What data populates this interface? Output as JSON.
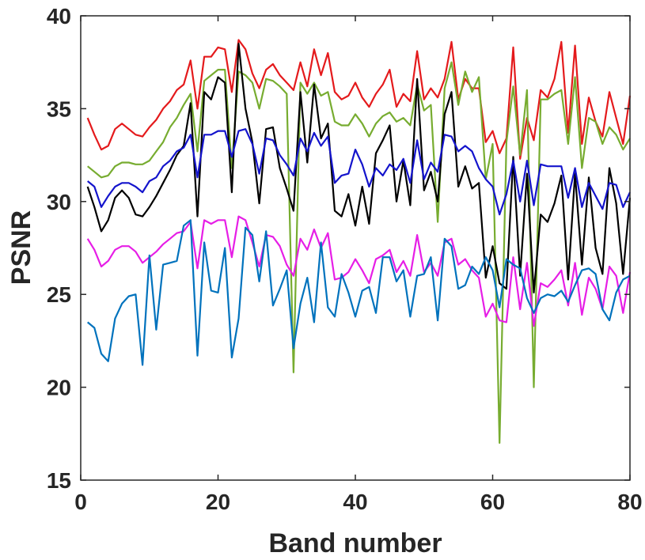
{
  "chart_data": {
    "type": "line",
    "title": "",
    "xlabel": "Band number",
    "ylabel": "PSNR",
    "xlim": [
      0,
      80
    ],
    "ylim": [
      15,
      40
    ],
    "xticks": [
      0,
      20,
      40,
      60,
      80
    ],
    "yticks": [
      15,
      20,
      25,
      30,
      35,
      40
    ],
    "grid": false,
    "x": [
      1,
      2,
      3,
      4,
      5,
      6,
      7,
      8,
      9,
      10,
      11,
      12,
      13,
      14,
      15,
      16,
      17,
      18,
      19,
      20,
      21,
      22,
      23,
      24,
      25,
      26,
      27,
      28,
      29,
      30,
      31,
      32,
      33,
      34,
      35,
      36,
      37,
      38,
      39,
      40,
      41,
      42,
      43,
      44,
      45,
      46,
      47,
      48,
      49,
      50,
      51,
      52,
      53,
      54,
      55,
      56,
      57,
      58,
      59,
      60,
      61,
      62,
      63,
      64,
      65,
      66,
      67,
      68,
      69,
      70,
      71,
      72,
      73,
      74,
      75,
      76,
      77,
      78,
      79,
      80
    ],
    "series": [
      {
        "color": "#e41a1c",
        "values": [
          34.5,
          33.6,
          32.8,
          33.0,
          33.9,
          34.2,
          33.9,
          33.6,
          33.5,
          34.0,
          34.4,
          35.0,
          35.4,
          36.0,
          36.3,
          37.6,
          35.0,
          37.8,
          37.8,
          38.3,
          38.2,
          35.9,
          38.7,
          38.2,
          36.9,
          36.1,
          37.1,
          37.4,
          36.8,
          36.4,
          36.0,
          37.5,
          36.2,
          38.2,
          36.8,
          38.0,
          35.9,
          35.5,
          35.7,
          36.4,
          35.6,
          35.1,
          35.8,
          36.3,
          37.1,
          35.1,
          35.8,
          35.4,
          38.1,
          35.5,
          36.1,
          35.6,
          36.6,
          38.6,
          35.5,
          36.6,
          36.1,
          36.1,
          33.2,
          33.8,
          32.6,
          33.4,
          38.3,
          32.3,
          34.5,
          33.3,
          36.0,
          35.6,
          36.6,
          38.6,
          33.7,
          38.4,
          33.1,
          35.6,
          34.3,
          33.5,
          35.9,
          34.5,
          33.1,
          35.7
        ]
      },
      {
        "color": "#77ac30",
        "values": [
          31.9,
          31.6,
          31.3,
          31.4,
          31.9,
          32.1,
          32.1,
          32.0,
          32.0,
          32.2,
          32.7,
          33.2,
          34.0,
          34.5,
          35.2,
          35.8,
          32.7,
          36.5,
          36.8,
          37.1,
          37.1,
          31.8,
          37.0,
          36.8,
          36.4,
          35.0,
          36.6,
          36.5,
          36.2,
          35.8,
          20.8,
          36.4,
          35.8,
          36.4,
          35.7,
          35.9,
          34.3,
          34.1,
          34.1,
          34.7,
          34.2,
          33.5,
          34.2,
          34.6,
          34.8,
          34.3,
          34.5,
          34.1,
          36.3,
          34.9,
          35.2,
          28.9,
          36.1,
          37.5,
          35.2,
          37.0,
          35.9,
          36.7,
          31.2,
          33.1,
          17.0,
          33.2,
          36.2,
          32.5,
          36.0,
          20.0,
          35.5,
          35.5,
          35.8,
          36.0,
          33.1,
          36.7,
          31.8,
          34.5,
          34.3,
          33.1,
          34.0,
          33.6,
          32.8,
          33.4
        ]
      },
      {
        "color": "#000000",
        "values": [
          30.8,
          29.7,
          28.4,
          29.0,
          30.2,
          30.6,
          30.2,
          29.3,
          29.2,
          29.7,
          30.3,
          31.0,
          31.7,
          32.5,
          33.0,
          35.3,
          29.2,
          35.9,
          35.5,
          36.7,
          36.4,
          30.5,
          38.5,
          35.0,
          33.2,
          29.9,
          33.9,
          34.0,
          31.8,
          30.7,
          29.5,
          35.9,
          32.1,
          36.3,
          33.4,
          34.2,
          29.5,
          29.2,
          30.4,
          28.7,
          30.8,
          28.8,
          32.6,
          33.3,
          34.1,
          30.0,
          32.2,
          29.8,
          36.6,
          30.6,
          31.6,
          30.0,
          34.7,
          35.9,
          30.8,
          31.9,
          30.7,
          31.0,
          25.9,
          27.6,
          25.6,
          25.3,
          32.4,
          26.0,
          31.5,
          25.1,
          29.3,
          28.9,
          29.9,
          31.4,
          25.8,
          31.5,
          26.6,
          31.3,
          27.5,
          26.1,
          31.8,
          29.9,
          26.1,
          30.2
        ]
      },
      {
        "color": "#1414cc",
        "values": [
          31.1,
          30.8,
          29.7,
          30.3,
          30.8,
          31.0,
          31.0,
          30.8,
          30.5,
          31.1,
          31.3,
          31.9,
          32.2,
          32.7,
          32.9,
          33.6,
          31.3,
          33.6,
          33.6,
          33.8,
          33.8,
          32.4,
          33.8,
          33.9,
          33.1,
          31.5,
          33.4,
          33.3,
          32.5,
          32.0,
          31.4,
          33.4,
          32.7,
          33.7,
          33.0,
          33.5,
          31.0,
          31.4,
          31.5,
          32.8,
          32.0,
          30.8,
          31.8,
          31.4,
          32.0,
          31.7,
          32.3,
          31.0,
          33.3,
          31.2,
          32.1,
          31.6,
          33.6,
          33.5,
          32.7,
          33.0,
          32.7,
          31.8,
          31.2,
          30.8,
          29.3,
          30.4,
          32.2,
          30.0,
          32.2,
          29.8,
          32.0,
          31.9,
          31.9,
          31.9,
          30.2,
          31.8,
          29.7,
          31.0,
          30.3,
          29.6,
          31.0,
          30.9,
          29.7,
          30.5
        ]
      },
      {
        "color": "#e61ee6",
        "values": [
          28.0,
          27.4,
          26.5,
          26.8,
          27.4,
          27.6,
          27.6,
          27.3,
          26.7,
          27.0,
          27.3,
          27.7,
          28.0,
          28.3,
          28.4,
          28.9,
          26.4,
          29.0,
          28.8,
          29.0,
          29.0,
          27.0,
          29.2,
          29.0,
          27.8,
          26.5,
          28.2,
          28.1,
          27.6,
          26.6,
          26.0,
          28.0,
          27.4,
          28.5,
          27.5,
          28.3,
          25.8,
          25.9,
          26.2,
          26.9,
          26.3,
          25.6,
          26.9,
          27.1,
          27.4,
          26.2,
          26.8,
          26.0,
          28.2,
          26.2,
          26.7,
          26.0,
          27.8,
          28.0,
          26.6,
          26.9,
          26.3,
          25.9,
          23.8,
          24.5,
          23.6,
          23.5,
          27.0,
          24.2,
          26.7,
          23.3,
          25.6,
          25.4,
          25.8,
          26.3,
          24.4,
          26.7,
          23.9,
          25.9,
          25.3,
          24.2,
          26.5,
          26.0,
          24.0,
          26.2
        ]
      },
      {
        "color": "#0072bd",
        "values": [
          23.5,
          23.2,
          21.8,
          21.4,
          23.7,
          24.5,
          24.9,
          25.0,
          21.2,
          27.1,
          23.1,
          26.6,
          26.7,
          26.8,
          28.7,
          29.0,
          21.7,
          27.8,
          25.2,
          25.1,
          27.5,
          21.6,
          23.7,
          28.6,
          28.2,
          25.7,
          28.4,
          24.4,
          25.3,
          26.3,
          22.1,
          24.5,
          25.9,
          23.5,
          27.8,
          24.3,
          23.8,
          26.1,
          25.1,
          23.8,
          25.2,
          25.4,
          24.0,
          27.0,
          27.0,
          25.7,
          26.3,
          23.8,
          26.0,
          26.1,
          27.0,
          23.6,
          28.0,
          27.6,
          25.3,
          25.5,
          26.5,
          26.1,
          27.0,
          26.3,
          24.3,
          26.9,
          26.6,
          26.4,
          24.8,
          24.0,
          24.8,
          25.0,
          24.9,
          25.2,
          24.6,
          25.5,
          26.3,
          26.4,
          26.1,
          24.2,
          23.6,
          25.1,
          25.8,
          26.0
        ]
      }
    ]
  }
}
